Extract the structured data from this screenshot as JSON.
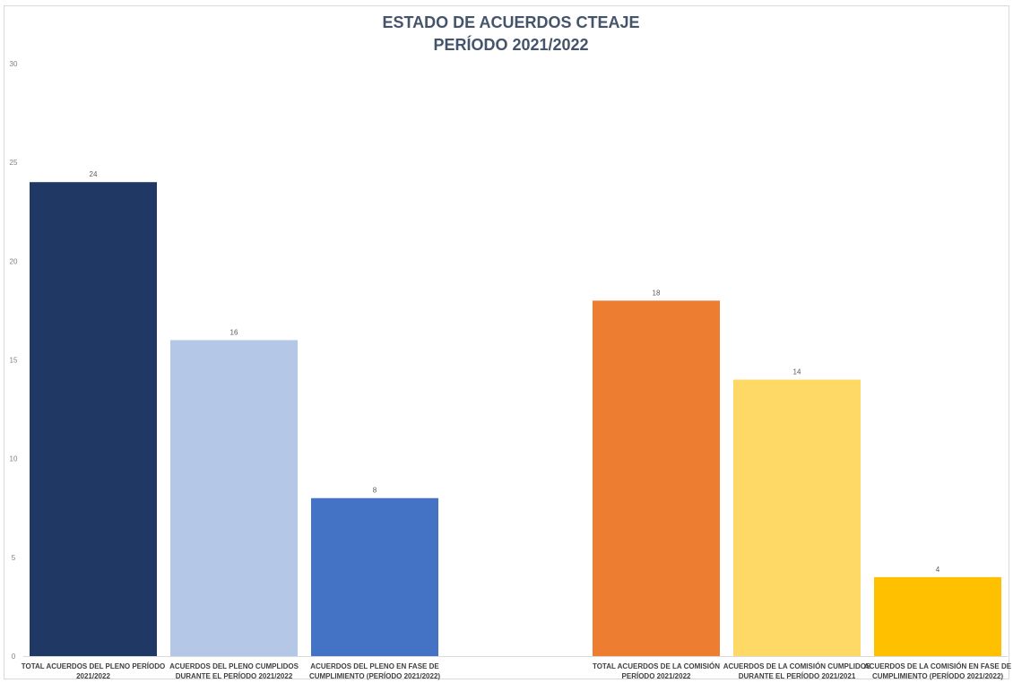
{
  "chart_data": {
    "type": "bar",
    "title": [
      "ESTADO DE ACUERDOS CTEAJE",
      "PERÍODO 2021/2022"
    ],
    "xlabel": "",
    "ylabel": "",
    "ylim": [
      0,
      30
    ],
    "yticks": [
      "0",
      "5",
      "10",
      "15",
      "20",
      "25",
      "30"
    ],
    "grid": false,
    "legend": "none",
    "categories": [
      [
        "TOTAL ACUERDOS DEL PLENO PERÍODO",
        "2021/2022"
      ],
      [
        "ACUERDOS DEL PLENO CUMPLIDOS",
        "DURANTE EL PERÍODO 2021/2022"
      ],
      [
        "ACUERDOS DEL PLENO EN FASE DE",
        "CUMPLIMIENTO (PERÍODO 2021/2022)"
      ],
      [
        "",
        ""
      ],
      [
        "TOTAL ACUERDOS DE LA COMISIÓN",
        "PERÍODO 2021/2022"
      ],
      [
        "ACUERDOS DE LA COMISIÓN CUMPLIDOS",
        "DURANTE EL PERÍODO 2021/2021"
      ],
      [
        "ACUERDOS DE LA COMISIÓN EN FASE DE",
        "CUMPLIMIENTO (PERÍODO 2021/2022)"
      ]
    ],
    "values": [
      24,
      16,
      8,
      null,
      18,
      14,
      4
    ],
    "data_labels": [
      "24",
      "16",
      "8",
      "",
      "18",
      "14",
      "4"
    ],
    "colors": [
      "#203864",
      "#b4c7e7",
      "#4472c4",
      "",
      "#ed7d31",
      "#ffd966",
      "#ffc000"
    ]
  }
}
